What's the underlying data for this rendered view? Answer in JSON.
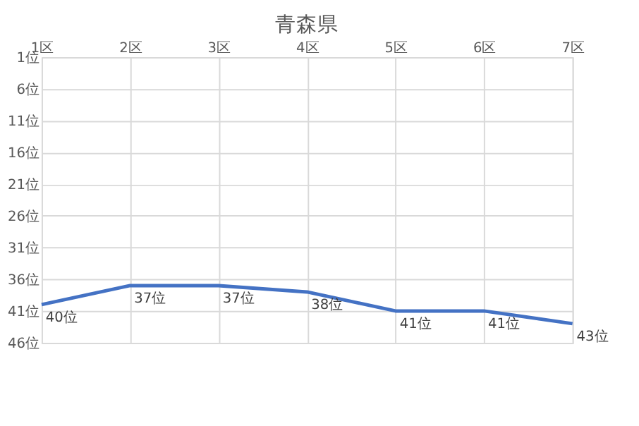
{
  "chart_data": {
    "type": "line",
    "title": "青森県",
    "categories": [
      "1区",
      "2区",
      "3区",
      "4区",
      "5区",
      "6区",
      "7区"
    ],
    "series": [
      {
        "color": "#4472c4",
        "values": [
          40,
          37,
          37,
          38,
          41,
          41,
          43
        ],
        "value_labels": [
          "40位",
          "37位",
          "37位",
          "38位",
          "41位",
          "41位",
          "43位"
        ]
      }
    ],
    "ylim": [
      46,
      1
    ],
    "yticks": [
      {
        "value": 1,
        "label": "1位"
      },
      {
        "value": 6,
        "label": "6位"
      },
      {
        "value": 11,
        "label": "11位"
      },
      {
        "value": 16,
        "label": "16位"
      },
      {
        "value": 21,
        "label": "21位"
      },
      {
        "value": 26,
        "label": "26位"
      },
      {
        "value": 31,
        "label": "31位"
      },
      {
        "value": 36,
        "label": "36位"
      },
      {
        "value": 41,
        "label": "41位"
      },
      {
        "value": 46,
        "label": "46位"
      }
    ],
    "grid": true,
    "marker": "none",
    "line_style": "solid"
  }
}
